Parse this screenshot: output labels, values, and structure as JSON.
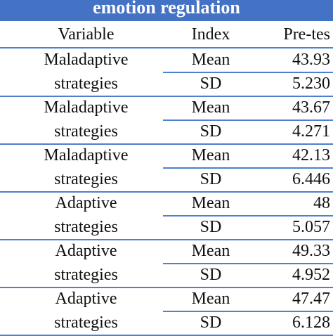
{
  "header": {
    "title": "emotion regulation",
    "columns": [
      "Variable",
      "Index",
      "Pre-tes"
    ]
  },
  "table": {
    "groups": [
      {
        "variable": "Maladaptive strategies",
        "rows": [
          [
            "Mean",
            "43.93"
          ],
          [
            "SD",
            "5.230"
          ]
        ]
      },
      {
        "variable": "Maladaptive strategies",
        "rows": [
          [
            "Mean",
            "43.67"
          ],
          [
            "SD",
            "4.271"
          ]
        ]
      },
      {
        "variable": "Maladaptive strategies",
        "rows": [
          [
            "Mean",
            "42.13"
          ],
          [
            "SD",
            "6.446"
          ]
        ]
      },
      {
        "variable": "Adaptive strategies",
        "rows": [
          [
            "Mean",
            "48"
          ],
          [
            "SD",
            "5.057"
          ]
        ]
      },
      {
        "variable": "Adaptive strategies",
        "rows": [
          [
            "Mean",
            "49.33"
          ],
          [
            "SD",
            "4.952"
          ]
        ]
      },
      {
        "variable": "Adaptive strategies",
        "rows": [
          [
            "Mean",
            "47.47"
          ],
          [
            "SD",
            "6.128"
          ]
        ]
      }
    ]
  }
}
